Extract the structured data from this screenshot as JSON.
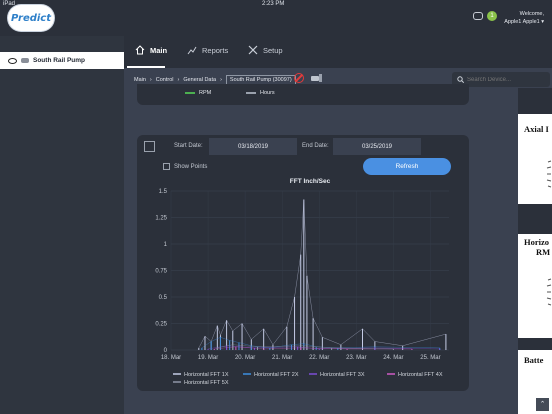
{
  "status_bar": {
    "left": "iPad",
    "time": "2:23 PM"
  },
  "app": {
    "logo": "Predict"
  },
  "header": {
    "notification_count": "1",
    "welcome": "Welcome,",
    "user": "Apple1 Apple1 ▾"
  },
  "sidebar": {
    "items": [
      {
        "label": "South Rail Pump"
      }
    ]
  },
  "tabs": [
    {
      "label": "Main"
    },
    {
      "label": "Reports"
    },
    {
      "label": "Setup"
    }
  ],
  "breadcrumb": [
    "Main",
    "Control",
    "General Data",
    "South Rail Pump (30097)"
  ],
  "search": {
    "placeholder": "Search Device..."
  },
  "top_card": {
    "legend": [
      {
        "label": "RPM",
        "color": "#4caf50"
      },
      {
        "label": "Hours",
        "color": "#9aa1ad"
      }
    ]
  },
  "filters": {
    "start_label": "Start Date:",
    "start_value": "03/18/2019",
    "end_label": "End Date:",
    "end_value": "03/25/2019",
    "show_points": "Show Points",
    "refresh": "Refresh"
  },
  "right_cards": [
    {
      "label": "Axial I"
    },
    {
      "label": "Horizo"
    },
    {
      "label": "RM"
    },
    {
      "label": "Batte"
    }
  ],
  "chart_data": {
    "type": "line",
    "title": "FFT Inch/Sec",
    "x_ticks": [
      "18. Mar",
      "19. Mar",
      "20. Mar",
      "21. Mar",
      "22. Mar",
      "23. Mar",
      "24. Mar",
      "25. Mar"
    ],
    "y_ticks": [
      "0",
      "0.25",
      "0.5",
      "0.75",
      "1",
      "1.25",
      "1.5"
    ],
    "ylim": [
      0,
      1.5
    ],
    "xlim": [
      "2019-03-18",
      "2019-03-25 12:00"
    ],
    "series": [
      {
        "name": "Horizontal FFT 1X",
        "color": "#c5cce6",
        "points": [
          [
            "2019-03-18 18:00",
            0.02
          ],
          [
            "2019-03-18 22:00",
            0.13
          ],
          [
            "2019-03-19 02:00",
            0.08
          ],
          [
            "2019-03-19 06:00",
            0.23
          ],
          [
            "2019-03-19 08:00",
            0.14
          ],
          [
            "2019-03-19 12:00",
            0.28
          ],
          [
            "2019-03-19 16:00",
            0.18
          ],
          [
            "2019-03-19 22:00",
            0.25
          ],
          [
            "2019-03-20 04:00",
            0.1
          ],
          [
            "2019-03-20 12:00",
            0.2
          ],
          [
            "2019-03-20 18:00",
            0.05
          ],
          [
            "2019-03-21 03:00",
            0.22
          ],
          [
            "2019-03-21 08:00",
            0.5
          ],
          [
            "2019-03-21 12:00",
            0.9
          ],
          [
            "2019-03-21 14:00",
            1.42
          ],
          [
            "2019-03-21 16:00",
            0.7
          ],
          [
            "2019-03-21 20:00",
            0.3
          ],
          [
            "2019-03-22 02:00",
            0.12
          ],
          [
            "2019-03-22 14:00",
            0.05
          ],
          [
            "2019-03-23 04:00",
            0.2
          ],
          [
            "2019-03-23 12:00",
            0.08
          ],
          [
            "2019-03-24 06:00",
            0.04
          ],
          [
            "2019-03-25 10:00",
            0.15
          ]
        ]
      },
      {
        "name": "Horizontal FFT 2X",
        "color": "#3d8fe0",
        "points": [
          [
            "2019-03-18 20:00",
            0.02
          ],
          [
            "2019-03-19 02:00",
            0.08
          ],
          [
            "2019-03-19 08:00",
            0.12
          ],
          [
            "2019-03-19 14:00",
            0.09
          ],
          [
            "2019-03-19 20:00",
            0.07
          ],
          [
            "2019-03-20 04:00",
            0.04
          ],
          [
            "2019-03-20 16:00",
            0.02
          ],
          [
            "2019-03-21 06:00",
            0.05
          ],
          [
            "2019-03-21 14:00",
            0.06
          ],
          [
            "2019-03-21 22:00",
            0.03
          ],
          [
            "2019-03-22 12:00",
            0.02
          ],
          [
            "2019-03-23 12:00",
            0.03
          ],
          [
            "2019-03-25 06:00",
            0.02
          ]
        ]
      },
      {
        "name": "Horizontal FFT 3X",
        "color": "#7c4dd6",
        "points": [
          [
            "2019-03-19 00:00",
            0.01
          ],
          [
            "2019-03-19 12:00",
            0.04
          ],
          [
            "2019-03-20 06:00",
            0.02
          ],
          [
            "2019-03-21 10:00",
            0.03
          ],
          [
            "2019-03-22 00:00",
            0.01
          ],
          [
            "2019-03-23 12:00",
            0.02
          ],
          [
            "2019-03-25 06:00",
            0.01
          ]
        ]
      },
      {
        "name": "Horizontal FFT 4X",
        "color": "#d05bc4",
        "points": [
          [
            "2019-03-19 04:00",
            0.01
          ],
          [
            "2019-03-19 18:00",
            0.03
          ],
          [
            "2019-03-20 12:00",
            0.01
          ],
          [
            "2019-03-21 12:00",
            0.02
          ],
          [
            "2019-03-22 18:00",
            0.01
          ],
          [
            "2019-03-24 12:00",
            0.01
          ]
        ]
      },
      {
        "name": "Horizontal FFT 5X",
        "color": "#8f96a8",
        "points": [
          [
            "2019-03-19 06:00",
            0.02
          ],
          [
            "2019-03-19 16:00",
            0.05
          ],
          [
            "2019-03-20 08:00",
            0.03
          ],
          [
            "2019-03-21 14:00",
            0.04
          ],
          [
            "2019-03-22 08:00",
            0.02
          ],
          [
            "2019-03-24 00:00",
            0.01
          ]
        ]
      }
    ]
  }
}
